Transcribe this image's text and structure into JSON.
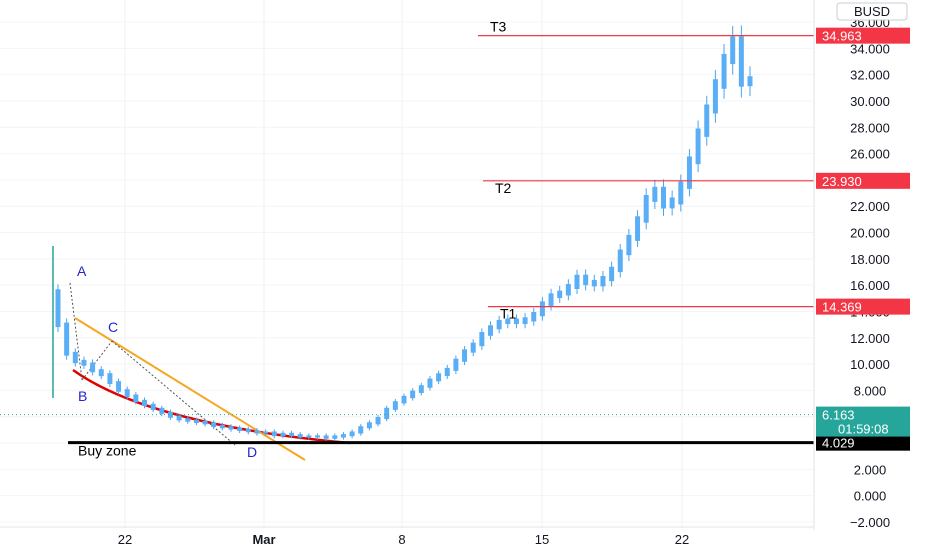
{
  "chart_data": {
    "type": "candlestick",
    "currency": "BUSD",
    "y_ticks": [
      -2,
      0,
      2,
      4,
      6,
      8,
      10,
      12,
      14,
      16,
      18,
      20,
      22,
      24,
      26,
      28,
      30,
      32,
      34,
      36
    ],
    "y_tick_labels": [
      "−2.000",
      "0.000",
      "2.000",
      "4.000",
      "6.000",
      "8.000",
      "10.000",
      "12.000",
      "14.000",
      "16.000",
      "18.000",
      "20.000",
      "22.000",
      "24.000",
      "26.000",
      "28.000",
      "30.000",
      "32.000",
      "34.000",
      "36.000"
    ],
    "ylim": [
      -2.6,
      36.8
    ],
    "x_ticks": [
      "22",
      "Mar",
      "8",
      "15",
      "22"
    ],
    "horizontal_levels": [
      {
        "label": "T3",
        "value": 34.963,
        "price_label": "34.963",
        "color": "#f23645"
      },
      {
        "label": "T2",
        "value": 23.93,
        "price_label": "23.930",
        "color": "#f23645"
      },
      {
        "label": "T1",
        "value": 14.369,
        "price_label": "14.369",
        "color": "#f23645"
      },
      {
        "label": "Buy zone",
        "value": 4.029,
        "price_label": "4.029",
        "color": "#000000"
      }
    ],
    "current_price": {
      "value": 6.163,
      "price_label": "6.163",
      "countdown": "01:59:08",
      "color": "#26a69a"
    },
    "pattern_points": [
      "A",
      "B",
      "C",
      "D"
    ],
    "price_path": [
      [
        0,
        15.5
      ],
      [
        2,
        13.0
      ],
      [
        4,
        10.8
      ],
      [
        6,
        10.2
      ],
      [
        8,
        10.0
      ],
      [
        10,
        9.5
      ],
      [
        12,
        9.2
      ],
      [
        14,
        8.6
      ],
      [
        16,
        8.0
      ],
      [
        18,
        7.6
      ],
      [
        20,
        7.2
      ],
      [
        22,
        6.9
      ],
      [
        24,
        6.6
      ],
      [
        26,
        6.3
      ],
      [
        28,
        6.0
      ],
      [
        30,
        5.8
      ],
      [
        32,
        5.7
      ],
      [
        34,
        5.6
      ],
      [
        36,
        5.5
      ],
      [
        38,
        5.3
      ],
      [
        40,
        5.2
      ],
      [
        42,
        5.1
      ],
      [
        44,
        5.0
      ],
      [
        46,
        4.9
      ],
      [
        48,
        4.8
      ],
      [
        50,
        4.8
      ],
      [
        52,
        4.6
      ],
      [
        54,
        4.7
      ],
      [
        56,
        4.6
      ],
      [
        58,
        4.5
      ],
      [
        60,
        4.5
      ],
      [
        62,
        4.5
      ],
      [
        64,
        4.4
      ],
      [
        66,
        4.5
      ],
      [
        68,
        4.6
      ],
      [
        70,
        4.8
      ],
      [
        72,
        5.2
      ],
      [
        74,
        5.5
      ],
      [
        76,
        5.9
      ],
      [
        78,
        6.6
      ],
      [
        80,
        7.1
      ],
      [
        82,
        7.5
      ],
      [
        84,
        7.9
      ],
      [
        86,
        8.3
      ],
      [
        88,
        8.8
      ],
      [
        90,
        9.2
      ],
      [
        92,
        9.6
      ],
      [
        94,
        10.3
      ],
      [
        96,
        11.0
      ],
      [
        98,
        11.5
      ],
      [
        100,
        12.3
      ],
      [
        102,
        12.8
      ],
      [
        104,
        13.2
      ],
      [
        106,
        13.3
      ],
      [
        108,
        13.2
      ],
      [
        110,
        13.4
      ],
      [
        112,
        13.8
      ],
      [
        114,
        14.6
      ],
      [
        116,
        15.2
      ],
      [
        118,
        15.4
      ],
      [
        120,
        15.9
      ],
      [
        122,
        16.6
      ],
      [
        124,
        16.2
      ],
      [
        126,
        16.1
      ],
      [
        128,
        16.5
      ],
      [
        130,
        17.2
      ],
      [
        132,
        18.5
      ],
      [
        134,
        19.6
      ],
      [
        136,
        21.0
      ],
      [
        138,
        22.6
      ],
      [
        140,
        23.2
      ],
      [
        142,
        22.1
      ],
      [
        144,
        22.4
      ],
      [
        146,
        23.6
      ],
      [
        148,
        25.5
      ],
      [
        150,
        27.6
      ],
      [
        152,
        29.4
      ],
      [
        154,
        31.3
      ],
      [
        156,
        33.2
      ],
      [
        158,
        34.5
      ],
      [
        160,
        31.5
      ]
    ]
  }
}
